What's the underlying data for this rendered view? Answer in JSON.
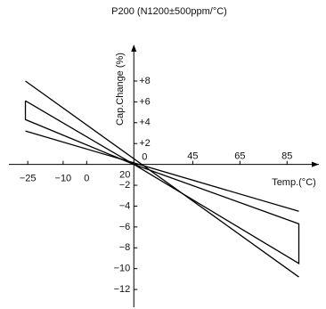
{
  "chart_data": {
    "type": "line",
    "title": "P200 (N1200±500ppm/°C)",
    "x_label": "Temp.(°C)",
    "y_label": "Cap.Change (%)",
    "xlim": [
      -33,
      98.5
    ],
    "ylim": [
      -13.7,
      11.5
    ],
    "xticks": [
      {
        "value": -25,
        "label": "−25"
      },
      {
        "value": -10,
        "label": "−10"
      },
      0,
      20,
      45,
      65,
      85
    ],
    "yticks": [
      {
        "value": 8,
        "label": "+8"
      },
      {
        "value": 6,
        "label": "+6"
      },
      {
        "value": 4,
        "label": "+4"
      },
      {
        "value": 2,
        "label": "+2"
      },
      0,
      {
        "value": -2,
        "label": "−2"
      },
      {
        "value": -4,
        "label": "−4"
      },
      {
        "value": -6,
        "label": "−6"
      },
      {
        "value": -8,
        "label": "−8"
      },
      {
        "value": -10,
        "label": "−10"
      },
      {
        "value": -12,
        "label": "−12"
      }
    ],
    "series": [
      {
        "color": "#000000",
        "x": [
          -26,
          90
        ],
        "values": [
          8.0,
          -10.8
        ]
      },
      {
        "color": "#000000",
        "x": [
          -26,
          90
        ],
        "values": [
          3.2,
          -4.5
        ]
      },
      {
        "color": "#000000",
        "x": [
          -26,
          20,
          90,
          90,
          20,
          -26,
          -26
        ],
        "values": [
          6.1,
          0,
          -9.5,
          -5.7,
          0,
          4.3,
          6.1
        ]
      }
    ]
  }
}
